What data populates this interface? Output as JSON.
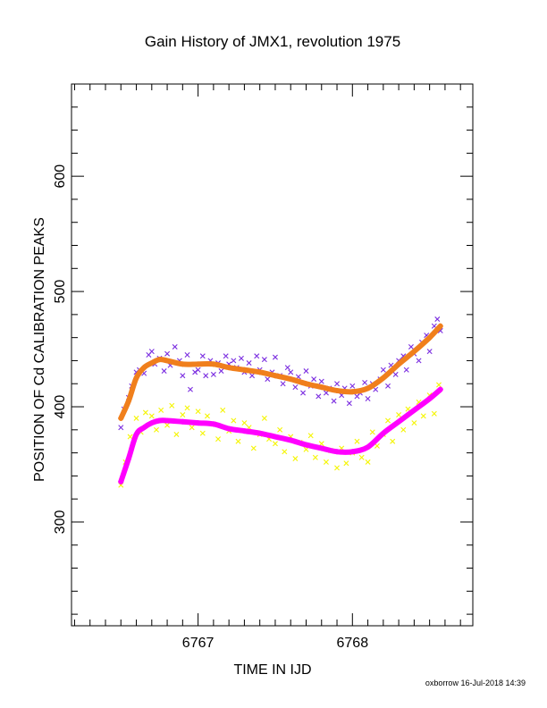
{
  "chart_data": {
    "type": "scatter",
    "title": "Gain History of JMX1, revolution 1975",
    "xlabel": "TIME IN IJD",
    "ylabel": "POSITION OF Cd CALIBRATION PEAKS",
    "xlim": [
      6766.18,
      6768.78
    ],
    "ylim": [
      210,
      680
    ],
    "x_ticks": [
      6767,
      6768
    ],
    "x_tick_labels": [
      "6767",
      "6768"
    ],
    "x_minor_step": 0.1,
    "y_ticks": [
      300,
      400,
      500,
      600
    ],
    "y_tick_labels": [
      "300",
      "400",
      "500",
      "600"
    ],
    "y_minor_step": 20,
    "grid": false,
    "legend": "none",
    "colors": {
      "upper_scatter": "#7b2ee0",
      "upper_trend": "#f07f1c",
      "lower_scatter": "#f5f500",
      "lower_trend": "#ff00ff"
    },
    "series": [
      {
        "kind": "trend",
        "color_key": "upper_trend",
        "x": [
          6766.5,
          6766.55,
          6766.6,
          6766.65,
          6766.7,
          6766.75,
          6766.8,
          6766.9,
          6767.0,
          6767.1,
          6767.2,
          6767.3,
          6767.4,
          6767.5,
          6767.6,
          6767.7,
          6767.8,
          6767.9,
          6768.0,
          6768.1,
          6768.2,
          6768.3,
          6768.4,
          6768.5,
          6768.57
        ],
        "y": [
          390,
          405,
          425,
          434,
          438,
          441,
          440,
          437,
          437,
          437,
          434,
          432,
          430,
          427,
          424,
          420,
          417,
          414,
          413,
          416,
          425,
          437,
          448,
          460,
          470
        ]
      },
      {
        "kind": "trend",
        "color_key": "lower_trend",
        "x": [
          6766.5,
          6766.55,
          6766.6,
          6766.65,
          6766.7,
          6766.75,
          6766.8,
          6766.9,
          6767.0,
          6767.1,
          6767.2,
          6767.3,
          6767.4,
          6767.5,
          6767.6,
          6767.7,
          6767.8,
          6767.9,
          6768.0,
          6768.1,
          6768.2,
          6768.3,
          6768.4,
          6768.5,
          6768.57
        ],
        "y": [
          335,
          355,
          376,
          382,
          386,
          388,
          388,
          387,
          386,
          385,
          381,
          379,
          377,
          374,
          371,
          367,
          364,
          361,
          361,
          365,
          377,
          387,
          397,
          407,
          415
        ]
      },
      {
        "kind": "scatter",
        "marker": "x",
        "color_key": "upper_scatter",
        "x": [
          6766.5,
          6766.52,
          6766.55,
          6766.57,
          6766.6,
          6766.62,
          6766.65,
          6766.68,
          6766.7,
          6766.72,
          6766.75,
          6766.78,
          6766.8,
          6766.82,
          6766.85,
          6766.88,
          6766.9,
          6766.93,
          6766.95,
          6766.98,
          6767.0,
          6767.03,
          6767.05,
          6767.08,
          6767.1,
          6767.13,
          6767.15,
          6767.18,
          6767.2,
          6767.23,
          6767.25,
          6767.28,
          6767.3,
          6767.33,
          6767.35,
          6767.38,
          6767.4,
          6767.43,
          6767.45,
          6767.48,
          6767.5,
          6767.53,
          6767.55,
          6767.58,
          6767.6,
          6767.63,
          6767.65,
          6767.68,
          6767.7,
          6767.73,
          6767.75,
          6767.78,
          6767.8,
          6767.83,
          6767.85,
          6767.88,
          6767.9,
          6767.93,
          6767.95,
          6767.98,
          6768.0,
          6768.03,
          6768.05,
          6768.08,
          6768.1,
          6768.13,
          6768.15,
          6768.18,
          6768.2,
          6768.23,
          6768.25,
          6768.28,
          6768.3,
          6768.33,
          6768.35,
          6768.38,
          6768.4,
          6768.43,
          6768.45,
          6768.48,
          6768.5,
          6768.53,
          6768.55,
          6768.57
        ],
        "y": [
          382,
          398,
          408,
          418,
          430,
          432,
          429,
          445,
          448,
          437,
          442,
          431,
          446,
          436,
          452,
          440,
          427,
          445,
          415,
          430,
          432,
          444,
          427,
          440,
          428,
          438,
          431,
          444,
          437,
          440,
          434,
          442,
          430,
          438,
          427,
          444,
          432,
          441,
          424,
          430,
          443,
          427,
          420,
          434,
          430,
          417,
          426,
          412,
          431,
          418,
          424,
          409,
          422,
          412,
          416,
          405,
          420,
          410,
          416,
          403,
          418,
          409,
          412,
          421,
          407,
          420,
          415,
          424,
          432,
          418,
          436,
          428,
          440,
          444,
          432,
          452,
          446,
          440,
          456,
          462,
          448,
          470,
          476,
          466
        ]
      },
      {
        "kind": "scatter",
        "marker": "x",
        "color_key": "lower_scatter",
        "x": [
          6766.5,
          6766.53,
          6766.56,
          6766.6,
          6766.63,
          6766.66,
          6766.7,
          6766.73,
          6766.76,
          6766.8,
          6766.83,
          6766.86,
          6766.9,
          6766.93,
          6766.96,
          6767.0,
          6767.03,
          6767.06,
          6767.1,
          6767.13,
          6767.16,
          6767.2,
          6767.23,
          6767.26,
          6767.3,
          6767.33,
          6767.36,
          6767.4,
          6767.43,
          6767.46,
          6767.5,
          6767.53,
          6767.56,
          6767.6,
          6767.63,
          6767.66,
          6767.7,
          6767.73,
          6767.76,
          6767.8,
          6767.83,
          6767.86,
          6767.9,
          6767.93,
          6767.96,
          6768.0,
          6768.03,
          6768.06,
          6768.1,
          6768.13,
          6768.16,
          6768.2,
          6768.23,
          6768.26,
          6768.3,
          6768.33,
          6768.36,
          6768.4,
          6768.43,
          6768.46,
          6768.5,
          6768.53,
          6768.56
        ],
        "y": [
          332,
          352,
          374,
          390,
          378,
          395,
          392,
          380,
          397,
          384,
          401,
          376,
          393,
          399,
          382,
          396,
          377,
          392,
          385,
          372,
          397,
          379,
          388,
          370,
          386,
          382,
          364,
          376,
          390,
          372,
          368,
          380,
          361,
          374,
          355,
          369,
          363,
          375,
          356,
          368,
          352,
          362,
          347,
          364,
          351,
          360,
          370,
          356,
          352,
          378,
          366,
          376,
          388,
          370,
          393,
          380,
          398,
          386,
          404,
          392,
          410,
          394,
          419
        ]
      }
    ]
  },
  "footer": {
    "credit": "oxborrow 16-Jul-2018 14:39"
  }
}
